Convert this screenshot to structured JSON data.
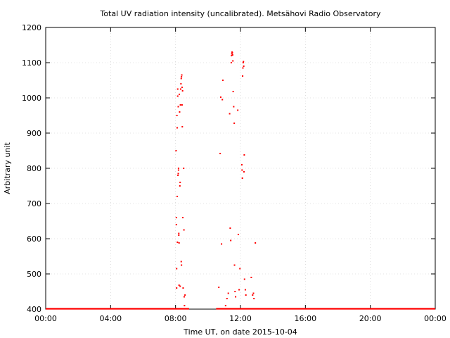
{
  "chart_data": {
    "type": "scatter",
    "title": "Total UV radiation intensity (uncalibrated). Metsähovi Radio Observatory",
    "xlabel": "Time UT, on date 2015-10-04",
    "ylabel": "Arbitrary unit",
    "xlim": [
      "00:00",
      "24:00"
    ],
    "ylim": [
      400,
      1200
    ],
    "x_ticks": [
      "00:00",
      "04:00",
      "08:00",
      "12:00",
      "16:00",
      "20:00",
      "00:00"
    ],
    "y_ticks": [
      400,
      500,
      600,
      700,
      800,
      900,
      1000,
      1100,
      1200
    ],
    "grid": true,
    "legend": "none",
    "point_color": "#ff0000",
    "baseline_value": 400,
    "baseline_ranges": [
      [
        "00:00",
        "08:50"
      ],
      [
        "10:30",
        "24:00"
      ]
    ],
    "points": [
      {
        "x": "08:02",
        "y": 850
      },
      {
        "x": "08:03",
        "y": 660
      },
      {
        "x": "08:03",
        "y": 640
      },
      {
        "x": "08:04",
        "y": 515
      },
      {
        "x": "08:04",
        "y": 460
      },
      {
        "x": "08:05",
        "y": 950
      },
      {
        "x": "08:06",
        "y": 915
      },
      {
        "x": "08:06",
        "y": 720
      },
      {
        "x": "08:07",
        "y": 590
      },
      {
        "x": "08:08",
        "y": 1005
      },
      {
        "x": "08:08",
        "y": 1025
      },
      {
        "x": "08:09",
        "y": 780
      },
      {
        "x": "08:10",
        "y": 975
      },
      {
        "x": "08:10",
        "y": 785
      },
      {
        "x": "08:11",
        "y": 795
      },
      {
        "x": "08:11",
        "y": 800
      },
      {
        "x": "08:12",
        "y": 610
      },
      {
        "x": "08:12",
        "y": 615
      },
      {
        "x": "08:13",
        "y": 588
      },
      {
        "x": "08:13",
        "y": 468
      },
      {
        "x": "08:14",
        "y": 1010
      },
      {
        "x": "08:15",
        "y": 960
      },
      {
        "x": "08:16",
        "y": 750
      },
      {
        "x": "08:17",
        "y": 760
      },
      {
        "x": "08:17",
        "y": 465
      },
      {
        "x": "08:18",
        "y": 980
      },
      {
        "x": "08:19",
        "y": 1025
      },
      {
        "x": "08:20",
        "y": 1040
      },
      {
        "x": "08:21",
        "y": 1055
      },
      {
        "x": "08:21",
        "y": 535
      },
      {
        "x": "08:22",
        "y": 1060
      },
      {
        "x": "08:22",
        "y": 525
      },
      {
        "x": "08:23",
        "y": 1065
      },
      {
        "x": "08:24",
        "y": 1030
      },
      {
        "x": "08:24",
        "y": 980
      },
      {
        "x": "08:25",
        "y": 918
      },
      {
        "x": "08:26",
        "y": 1020
      },
      {
        "x": "08:27",
        "y": 660
      },
      {
        "x": "08:28",
        "y": 460
      },
      {
        "x": "08:30",
        "y": 800
      },
      {
        "x": "08:31",
        "y": 625
      },
      {
        "x": "08:32",
        "y": 435
      },
      {
        "x": "08:33",
        "y": 410
      },
      {
        "x": "08:35",
        "y": 440
      },
      {
        "x": "10:40",
        "y": 462
      },
      {
        "x": "10:45",
        "y": 842
      },
      {
        "x": "10:47",
        "y": 1002
      },
      {
        "x": "10:50",
        "y": 585
      },
      {
        "x": "10:53",
        "y": 995
      },
      {
        "x": "10:55",
        "y": 1050
      },
      {
        "x": "11:05",
        "y": 410
      },
      {
        "x": "11:10",
        "y": 430
      },
      {
        "x": "11:15",
        "y": 445
      },
      {
        "x": "11:20",
        "y": 955
      },
      {
        "x": "11:22",
        "y": 630
      },
      {
        "x": "11:24",
        "y": 595
      },
      {
        "x": "11:26",
        "y": 1100
      },
      {
        "x": "11:27",
        "y": 1120
      },
      {
        "x": "11:28",
        "y": 1125
      },
      {
        "x": "11:29",
        "y": 1130
      },
      {
        "x": "11:30",
        "y": 1128
      },
      {
        "x": "11:31",
        "y": 1122
      },
      {
        "x": "11:32",
        "y": 1105
      },
      {
        "x": "11:33",
        "y": 1018
      },
      {
        "x": "11:35",
        "y": 975
      },
      {
        "x": "11:37",
        "y": 928
      },
      {
        "x": "11:38",
        "y": 525
      },
      {
        "x": "11:40",
        "y": 450
      },
      {
        "x": "11:42",
        "y": 435
      },
      {
        "x": "11:50",
        "y": 965
      },
      {
        "x": "11:52",
        "y": 612
      },
      {
        "x": "11:55",
        "y": 455
      },
      {
        "x": "11:58",
        "y": 515
      },
      {
        "x": "12:05",
        "y": 810
      },
      {
        "x": "12:06",
        "y": 795
      },
      {
        "x": "12:07",
        "y": 772
      },
      {
        "x": "12:08",
        "y": 1062
      },
      {
        "x": "12:09",
        "y": 1085
      },
      {
        "x": "12:10",
        "y": 1100
      },
      {
        "x": "12:11",
        "y": 1103
      },
      {
        "x": "12:12",
        "y": 1090
      },
      {
        "x": "12:13",
        "y": 790
      },
      {
        "x": "12:14",
        "y": 838
      },
      {
        "x": "12:15",
        "y": 485
      },
      {
        "x": "12:18",
        "y": 455
      },
      {
        "x": "12:20",
        "y": 440
      },
      {
        "x": "12:40",
        "y": 490
      },
      {
        "x": "12:45",
        "y": 440
      },
      {
        "x": "12:48",
        "y": 445
      },
      {
        "x": "12:50",
        "y": 430
      },
      {
        "x": "12:55",
        "y": 588
      }
    ]
  }
}
